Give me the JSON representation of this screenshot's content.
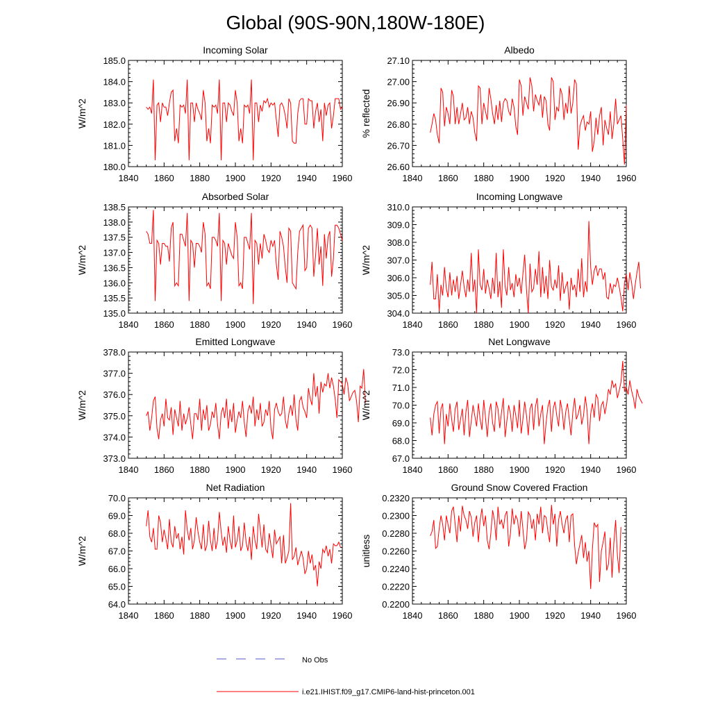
{
  "title": "Global (90S-90N,180W-180E)",
  "colors": {
    "model_line": "#ff0000",
    "obs_line": "#5555cc",
    "axis": "#000000"
  },
  "legend": {
    "obs_label": "No Obs",
    "model_label": "i.e21.IHIST.f09_g17.CMIP6-land-hist-princeton.001"
  },
  "chart_data": [
    {
      "type": "line",
      "title": "Incoming Solar",
      "ylabel": "W/m^2",
      "xlim": [
        1840,
        1960
      ],
      "ylim": [
        180,
        185
      ],
      "xticks": [
        "1840",
        "1860",
        "1880",
        "1900",
        "1920",
        "1940",
        "1960"
      ],
      "yticks": [
        "180.0",
        "181.0",
        "182.0",
        "183.0",
        "184.0",
        "185.0"
      ],
      "x_start": 1850,
      "values": [
        182.8,
        182.7,
        182.8,
        182.5,
        184.1,
        180.3,
        182.9,
        183.0,
        182.1,
        183.0,
        182.8,
        182.8,
        182.4,
        183.0,
        183.5,
        183.6,
        181.2,
        181.8,
        181.1,
        182.9,
        182.8,
        182.9,
        182.5,
        184.1,
        180.3,
        183.0,
        183.0,
        182.1,
        183.0,
        182.7,
        182.5,
        182.2,
        183.6,
        183.0,
        181.2,
        181.8,
        181.1,
        182.9,
        182.8,
        182.9,
        182.5,
        184.1,
        180.3,
        183.0,
        183.0,
        182.1,
        183.0,
        182.9,
        182.6,
        182.4,
        183.6,
        183.0,
        181.2,
        181.8,
        181.1,
        182.9,
        182.8,
        182.9,
        182.5,
        184.1,
        180.3,
        183.0,
        183.0,
        182.1,
        182.9,
        182.6,
        183.1,
        183.0,
        183.2,
        182.8,
        183.0,
        182.9,
        183.0,
        182.2,
        181.4,
        182.9,
        183.0,
        182.8,
        182.4,
        181.8,
        183.2,
        183.0,
        181.2,
        181.1,
        181.1,
        182.5,
        183.1,
        183.2,
        183.2,
        182.0,
        182.0,
        183.2,
        183.1,
        183.1,
        181.8,
        182.6,
        183.0,
        182.1,
        182.7,
        181.2,
        183.0,
        182.4,
        182.9,
        183.0,
        181.8,
        182.4,
        183.2,
        183.2,
        183.2,
        182.7,
        182.8
      ],
      "series_name": "i.e21.IHIST.f09_g17.CMIP6-land-hist-princeton.001"
    },
    {
      "type": "line",
      "title": "Albedo",
      "ylabel": "% reflected",
      "xlim": [
        1840,
        1960
      ],
      "ylim": [
        26.6,
        27.1
      ],
      "xticks": [
        "1840",
        "1860",
        "1880",
        "1900",
        "1920",
        "1940",
        "1960"
      ],
      "yticks": [
        "26.60",
        "26.70",
        "26.80",
        "26.90",
        "27.00",
        "27.10"
      ],
      "x_start": 1850,
      "values": [
        26.76,
        26.8,
        26.85,
        26.82,
        26.75,
        26.71,
        26.97,
        26.95,
        26.79,
        26.88,
        26.85,
        26.8,
        26.96,
        26.93,
        26.8,
        26.88,
        26.8,
        26.85,
        26.9,
        26.82,
        26.83,
        26.88,
        26.8,
        26.86,
        26.83,
        26.76,
        26.72,
        26.98,
        26.97,
        26.8,
        26.9,
        26.86,
        26.82,
        26.97,
        26.92,
        26.85,
        26.8,
        26.89,
        26.82,
        26.91,
        26.81,
        26.9,
        26.92,
        26.91,
        26.86,
        26.84,
        26.92,
        26.88,
        26.79,
        26.75,
        27.01,
        26.98,
        26.84,
        26.93,
        26.9,
        26.87,
        27.02,
        26.98,
        26.86,
        26.94,
        26.91,
        26.89,
        26.94,
        26.83,
        26.93,
        26.91,
        26.8,
        26.77,
        27.02,
        27.0,
        26.82,
        26.88,
        26.86,
        26.97,
        26.94,
        26.82,
        26.9,
        26.85,
        26.98,
        26.85,
        26.9,
        27.01,
        26.99,
        26.68,
        26.79,
        26.82,
        26.84,
        26.77,
        26.81,
        26.8,
        26.86,
        26.67,
        26.72,
        26.83,
        26.75,
        26.84,
        26.88,
        26.7,
        26.82,
        26.78,
        26.75,
        26.86,
        26.73,
        26.8,
        26.92,
        26.8,
        26.82,
        26.84,
        26.73,
        26.61,
        26.89
      ],
      "series_name": "i.e21.IHIST.f09_g17.CMIP6-land-hist-princeton.001"
    },
    {
      "type": "line",
      "title": "Absorbed Solar",
      "ylabel": "W/m^2",
      "xlim": [
        1840,
        1960
      ],
      "ylim": [
        135,
        138.5
      ],
      "xticks": [
        "1840",
        "1860",
        "1880",
        "1900",
        "1920",
        "1940",
        "1960"
      ],
      "yticks": [
        "135.0",
        "135.5",
        "136.0",
        "136.5",
        "137.0",
        "137.5",
        "138.0",
        "138.5"
      ],
      "x_start": 1850,
      "values": [
        137.7,
        137.6,
        137.3,
        137.3,
        138.4,
        135.4,
        137.4,
        137.3,
        136.6,
        137.3,
        137.3,
        137.2,
        137.2,
        136.7,
        137.8,
        138.0,
        135.9,
        136.0,
        135.9,
        137.6,
        137.6,
        137.4,
        137.2,
        138.3,
        135.4,
        137.4,
        137.3,
        136.5,
        137.3,
        137.3,
        137.2,
        137.0,
        138.0,
        137.6,
        135.9,
        136.0,
        135.8,
        137.5,
        137.5,
        137.4,
        137.2,
        138.3,
        135.4,
        137.4,
        137.3,
        136.6,
        137.3,
        137.1,
        136.9,
        136.8,
        138.0,
        137.5,
        135.9,
        136.0,
        135.8,
        137.5,
        137.5,
        137.3,
        137.1,
        138.3,
        135.3,
        137.4,
        137.3,
        136.6,
        137.3,
        136.8,
        137.6,
        137.4,
        137.1,
        137.0,
        137.4,
        137.2,
        137.4,
        136.6,
        136.1,
        137.7,
        137.5,
        137.2,
        136.5,
        136.0,
        137.8,
        137.7,
        136.0,
        135.9,
        135.8,
        137.0,
        137.7,
        137.8,
        137.9,
        136.4,
        136.5,
        137.8,
        137.9,
        137.8,
        136.2,
        136.9,
        137.8,
        136.6,
        137.2,
        135.9,
        137.6,
        136.8,
        137.5,
        137.7,
        136.2,
        136.8,
        137.9,
        137.9,
        137.8,
        137.6,
        137.4
      ],
      "series_name": "i.e21.IHIST.f09_g17.CMIP6-land-hist-princeton.001"
    },
    {
      "type": "line",
      "title": "Incoming Longwave",
      "ylabel": "W/m^2",
      "xlim": [
        1840,
        1960
      ],
      "ylim": [
        304,
        310
      ],
      "xticks": [
        "1840",
        "1860",
        "1880",
        "1900",
        "1920",
        "1940",
        "1960"
      ],
      "yticks": [
        "304.0",
        "305.0",
        "306.0",
        "307.0",
        "308.0",
        "309.0",
        "310.0"
      ],
      "x_start": 1850,
      "values": [
        305.6,
        306.9,
        304.8,
        304.8,
        306.2,
        304.1,
        305.6,
        305.0,
        306.6,
        305.4,
        304.9,
        306.3,
        305.0,
        305.9,
        305.2,
        306.1,
        304.8,
        305.6,
        306.4,
        305.5,
        304.9,
        305.9,
        305.2,
        307.4,
        305.2,
        305.9,
        304.0,
        307.6,
        305.6,
        305.3,
        306.5,
        305.1,
        305.9,
        305.4,
        304.8,
        306.0,
        305.1,
        307.4,
        304.9,
        305.8,
        304.3,
        307.6,
        305.5,
        305.0,
        306.6,
        305.3,
        305.7,
        304.9,
        306.2,
        305.5,
        306.0,
        305.1,
        306.2,
        307.3,
        305.3,
        304.0,
        306.8,
        305.2,
        305.4,
        306.5,
        305.6,
        307.5,
        304.9,
        306.6,
        305.1,
        306.1,
        304.8,
        307.0,
        305.5,
        305.3,
        305.9,
        305.4,
        306.7,
        304.7,
        306.3,
        305.1,
        305.5,
        305.8,
        304.2,
        306.0,
        305.3,
        305.6,
        304.9,
        306.5,
        305.2,
        307.1,
        304.9,
        305.8,
        305.2,
        309.2,
        306.6,
        305.6,
        306.4,
        306.7,
        306.1,
        306.5,
        306.5,
        305.9,
        306.3,
        304.9,
        304.8,
        305.7,
        305.1,
        305.6,
        305.5,
        306.0,
        305.5,
        304.9,
        304.1,
        305.7,
        306.2,
        305.3,
        306.3,
        305.7,
        304.8,
        305.6,
        306.3,
        306.9,
        305.4
      ],
      "series_name": "i.e21.IHIST.f09_g17.CMIP6-land-hist-princeton.001"
    },
    {
      "type": "line",
      "title": "Emitted Longwave",
      "ylabel": "W/m^2",
      "xlim": [
        1840,
        1960
      ],
      "ylim": [
        373,
        378
      ],
      "xticks": [
        "1840",
        "1860",
        "1880",
        "1900",
        "1920",
        "1940",
        "1960"
      ],
      "yticks": [
        "373.0",
        "374.0",
        "375.0",
        "376.0",
        "377.0",
        "378.0"
      ],
      "x_start": 1850,
      "values": [
        375.0,
        375.2,
        374.3,
        374.9,
        375.7,
        375.9,
        374.4,
        373.9,
        374.8,
        375.1,
        374.5,
        375.8,
        374.9,
        374.8,
        375.4,
        374.1,
        375.3,
        374.9,
        374.5,
        375.7,
        374.3,
        375.1,
        374.6,
        374.9,
        375.4,
        374.6,
        373.9,
        375.1,
        375.1,
        374.8,
        375.8,
        374.3,
        375.3,
        374.8,
        375.5,
        374.3,
        374.6,
        375.2,
        374.9,
        375.6,
        374.6,
        373.9,
        375.1,
        375.4,
        374.9,
        375.8,
        374.4,
        375.3,
        374.7,
        375.6,
        374.2,
        374.8,
        375.2,
        374.9,
        375.7,
        374.7,
        374.0,
        375.2,
        375.5,
        375.1,
        375.9,
        374.5,
        375.3,
        374.8,
        375.6,
        374.5,
        374.7,
        375.3,
        375.0,
        375.7,
        374.4,
        373.9,
        375.3,
        375.6,
        375.2,
        375.0,
        375.1,
        375.9,
        374.8,
        374.4,
        375.1,
        375.5,
        375.0,
        376.0,
        374.8,
        374.3,
        375.7,
        375.9,
        375.4,
        375.2,
        374.9,
        376.3,
        375.8,
        375.5,
        377.0,
        375.9,
        376.4,
        375.1,
        376.6,
        376.1,
        376.5,
        376.4,
        377.0,
        376.3,
        376.8,
        376.4,
        375.8,
        374.9,
        376.7,
        376.6,
        376.5,
        376.0,
        376.8,
        376.5,
        375.7,
        375.9,
        376.1,
        376.2,
        375.7,
        374.7,
        376.4,
        376.3,
        377.2,
        375.6
      ],
      "series_name": "i.e21.IHIST.f09_g17.CMIP6-land-hist-princeton.001"
    },
    {
      "type": "line",
      "title": "Net Longwave",
      "ylabel": "W/m^2",
      "xlim": [
        1840,
        1960
      ],
      "ylim": [
        67,
        73
      ],
      "xticks": [
        "1840",
        "1860",
        "1880",
        "1900",
        "1920",
        "1940",
        "1960"
      ],
      "yticks": [
        "67.0",
        "68.0",
        "69.0",
        "70.0",
        "71.0",
        "72.0",
        "73.0"
      ],
      "x_start": 1850,
      "values": [
        69.3,
        68.3,
        69.5,
        70.0,
        70.2,
        68.4,
        69.8,
        70.1,
        67.8,
        69.5,
        68.8,
        70.1,
        69.2,
        68.5,
        69.8,
        70.2,
        68.6,
        69.2,
        69.8,
        68.3,
        69.6,
        70.3,
        68.2,
        69.1,
        70.0,
        69.4,
        68.8,
        70.1,
        69.2,
        68.6,
        70.3,
        69.3,
        68.2,
        69.6,
        70.1,
        69.0,
        68.5,
        70.2,
        69.8,
        68.7,
        69.6,
        70.4,
        68.2,
        69.1,
        70.0,
        69.5,
        68.5,
        70.0,
        69.4,
        68.7,
        70.3,
        68.4,
        69.2,
        70.2,
        69.4,
        68.3,
        69.8,
        70.1,
        68.6,
        69.9,
        70.4,
        68.8,
        69.5,
        70.0,
        67.8,
        69.0,
        69.9,
        70.3,
        68.5,
        69.8,
        70.2,
        69.4,
        68.8,
        70.3,
        69.7,
        68.6,
        69.6,
        70.1,
        69.2,
        68.3,
        69.6,
        70.4,
        69.2,
        69.5,
        70.0,
        68.9,
        69.4,
        70.5,
        69.7,
        67.8,
        69.5,
        70.1,
        69.3,
        70.6,
        70.4,
        69.1,
        70.0,
        70.2,
        69.5,
        70.1,
        70.9,
        70.6,
        71.4,
        71.0,
        71.2,
        70.4,
        70.8,
        71.3,
        72.5,
        70.8,
        71.0,
        70.6,
        71.4,
        70.8,
        70.4,
        69.8,
        70.9,
        70.5,
        70.3,
        70.1
      ],
      "series_name": "i.e21.IHIST.f09_g17.CMIP6-land-hist-princeton.001"
    },
    {
      "type": "line",
      "title": "Net Radiation",
      "ylabel": "W/m^2",
      "xlim": [
        1840,
        1960
      ],
      "ylim": [
        64,
        70
      ],
      "xticks": [
        "1840",
        "1860",
        "1880",
        "1900",
        "1920",
        "1940",
        "1960"
      ],
      "yticks": [
        "64.0",
        "65.0",
        "66.0",
        "67.0",
        "68.0",
        "69.0",
        "70.0"
      ],
      "x_start": 1850,
      "values": [
        68.4,
        69.3,
        67.8,
        67.5,
        68.3,
        67.1,
        67.1,
        69.0,
        68.6,
        67.5,
        68.2,
        67.7,
        67.1,
        68.8,
        67.5,
        67.2,
        68.4,
        67.7,
        68.0,
        67.1,
        67.8,
        66.8,
        69.3,
        68.2,
        67.6,
        68.3,
        67.1,
        67.6,
        68.9,
        68.1,
        67.5,
        67.1,
        68.5,
        67.0,
        67.3,
        68.7,
        67.6,
        67.0,
        68.3,
        67.1,
        67.6,
        69.2,
        68.1,
        67.3,
        67.8,
        66.9,
        68.4,
        67.6,
        67.1,
        69.0,
        67.2,
        67.6,
        68.4,
        67.0,
        67.3,
        68.6,
        67.5,
        67.0,
        67.8,
        66.5,
        68.4,
        67.6,
        67.1,
        69.1,
        68.2,
        67.2,
        68.5,
        67.1,
        66.9,
        68.0,
        67.3,
        66.6,
        68.2,
        67.4,
        67.6,
        67.8,
        66.3,
        67.9,
        66.3,
        66.6,
        67.0,
        69.7,
        66.5,
        66.7,
        67.2,
        66.2,
        66.6,
        67.0,
        66.6,
        65.7,
        66.0,
        67.0,
        66.3,
        66.8,
        65.9,
        66.2,
        65.0,
        66.4,
        66.0,
        67.1,
        66.9,
        67.3,
        66.7,
        67.1,
        66.3,
        67.4,
        67.3,
        67.3,
        67.5,
        67.2
      ],
      "series_name": "i.e21.IHIST.f09_g17.CMIP6-land-hist-princeton.001"
    },
    {
      "type": "line",
      "title": "Ground Snow Covered Fraction",
      "ylabel": "unitless",
      "xlim": [
        1840,
        1960
      ],
      "ylim": [
        0.22,
        0.232
      ],
      "xticks": [
        "1840",
        "1860",
        "1880",
        "1900",
        "1920",
        "1940",
        "1960"
      ],
      "yticks": [
        "0.2200",
        "0.2220",
        "0.2240",
        "0.2260",
        "0.2280",
        "0.2300",
        "0.2320"
      ],
      "x_start": 1850,
      "values": [
        0.2277,
        0.2282,
        0.2295,
        0.2263,
        0.2265,
        0.2285,
        0.23,
        0.229,
        0.2272,
        0.23,
        0.229,
        0.228,
        0.2305,
        0.231,
        0.229,
        0.227,
        0.23,
        0.2282,
        0.2311,
        0.23,
        0.2295,
        0.2285,
        0.2305,
        0.2298,
        0.2276,
        0.2292,
        0.23,
        0.227,
        0.2295,
        0.2308,
        0.2288,
        0.23,
        0.2272,
        0.2262,
        0.228,
        0.2306,
        0.2295,
        0.2272,
        0.231,
        0.229,
        0.2295,
        0.2285,
        0.23,
        0.2305,
        0.2265,
        0.228,
        0.2308,
        0.229,
        0.23,
        0.2295,
        0.2276,
        0.2305,
        0.2285,
        0.2262,
        0.2272,
        0.2304,
        0.23,
        0.2285,
        0.2296,
        0.2272,
        0.2302,
        0.229,
        0.231,
        0.228,
        0.23,
        0.2298,
        0.2282,
        0.227,
        0.2312,
        0.229,
        0.2302,
        0.2265,
        0.2295,
        0.2305,
        0.229,
        0.228,
        0.2295,
        0.23,
        0.227,
        0.23,
        0.2302,
        0.2266,
        0.2245,
        0.2258,
        0.2268,
        0.2278,
        0.2252,
        0.227,
        0.2248,
        0.226,
        0.2217,
        0.2262,
        0.2292,
        0.2287,
        0.229,
        0.2225,
        0.226,
        0.227,
        0.2282,
        0.2238,
        0.2245,
        0.2275,
        0.223,
        0.2268,
        0.2295,
        0.2255,
        0.2235,
        0.2287
      ],
      "series_name": "i.e21.IHIST.f09_g17.CMIP6-land-hist-princeton.001"
    }
  ]
}
